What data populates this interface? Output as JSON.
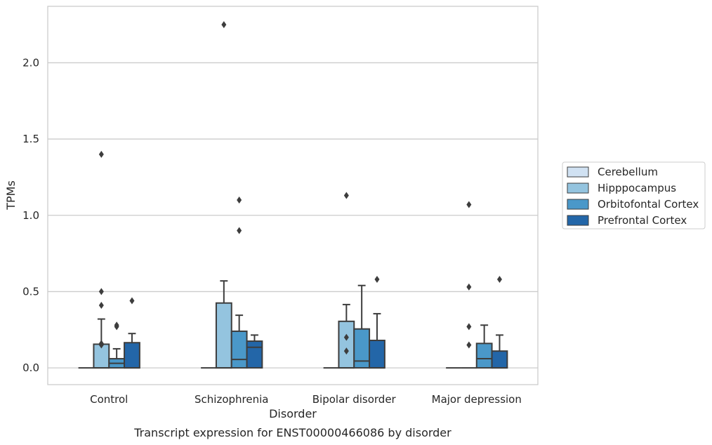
{
  "chart_data": {
    "type": "box",
    "title": "",
    "caption": "Transcript expression for ENST00000466086 by disorder",
    "xlabel": "Disorder",
    "ylabel": "TPMs",
    "categories": [
      "Control",
      "Schizophrenia",
      "Bipolar disorder",
      "Major depression"
    ],
    "ylim": [
      -0.11,
      2.37
    ],
    "yticks": [
      "0.0",
      "0.5",
      "1.0",
      "1.5",
      "2.0"
    ],
    "grid": "horizontal",
    "legend_position": "right",
    "series": [
      {
        "name": "Cerebellum",
        "color": "#d0e1f2",
        "boxes": [
          {
            "q1": 0,
            "median": 0,
            "q3": 0,
            "whisker_low": 0,
            "whisker_high": 0,
            "outliers": []
          },
          {
            "q1": 0,
            "median": 0,
            "q3": 0,
            "whisker_low": 0,
            "whisker_high": 0,
            "outliers": []
          },
          {
            "q1": 0,
            "median": 0,
            "q3": 0,
            "whisker_low": 0,
            "whisker_high": 0,
            "outliers": []
          },
          {
            "q1": 0,
            "median": 0,
            "q3": 0,
            "whisker_low": 0,
            "whisker_high": 0,
            "outliers": []
          }
        ]
      },
      {
        "name": "Hipppocampus",
        "color": "#94c4df",
        "boxes": [
          {
            "q1": 0,
            "median": 0,
            "q3": 0.155,
            "whisker_low": 0,
            "whisker_high": 0.32,
            "outliers": [
              0.15,
              0.16,
              0.41,
              0.5,
              1.4
            ]
          },
          {
            "q1": 0,
            "median": 0,
            "q3": 0.425,
            "whisker_low": 0,
            "whisker_high": 0.57,
            "outliers": [
              2.25
            ]
          },
          {
            "q1": 0,
            "median": 0,
            "q3": 0.305,
            "whisker_low": 0,
            "whisker_high": 0.415,
            "outliers": [
              0.11,
              0.2,
              1.13
            ]
          },
          {
            "q1": 0,
            "median": 0,
            "q3": 0,
            "whisker_low": 0,
            "whisker_high": 0,
            "outliers": [
              0.15,
              0.27,
              0.53,
              1.07
            ]
          }
        ]
      },
      {
        "name": "Orbitofontal Cortex",
        "color": "#4a98c9",
        "boxes": [
          {
            "q1": 0,
            "median": 0.03,
            "q3": 0.06,
            "whisker_low": 0,
            "whisker_high": 0.125,
            "outliers": [
              0.27,
              0.28
            ]
          },
          {
            "q1": 0,
            "median": 0.055,
            "q3": 0.24,
            "whisker_low": 0,
            "whisker_high": 0.345,
            "outliers": [
              0.9,
              1.1
            ]
          },
          {
            "q1": 0,
            "median": 0.045,
            "q3": 0.255,
            "whisker_low": 0,
            "whisker_high": 0.54,
            "outliers": []
          },
          {
            "q1": 0,
            "median": 0.06,
            "q3": 0.16,
            "whisker_low": 0,
            "whisker_high": 0.28,
            "outliers": []
          }
        ]
      },
      {
        "name": "Prefrontal Cortex",
        "color": "#2366a8",
        "boxes": [
          {
            "q1": 0,
            "median": 0,
            "q3": 0.165,
            "whisker_low": 0,
            "whisker_high": 0.225,
            "outliers": [
              0.44
            ]
          },
          {
            "q1": 0,
            "median": 0.135,
            "q3": 0.175,
            "whisker_low": 0,
            "whisker_high": 0.215,
            "outliers": []
          },
          {
            "q1": 0,
            "median": 0,
            "q3": 0.18,
            "whisker_low": 0,
            "whisker_high": 0.355,
            "outliers": [
              0.58
            ]
          },
          {
            "q1": 0,
            "median": 0,
            "q3": 0.11,
            "whisker_low": 0,
            "whisker_high": 0.215,
            "outliers": [
              0.58
            ]
          }
        ]
      }
    ]
  }
}
